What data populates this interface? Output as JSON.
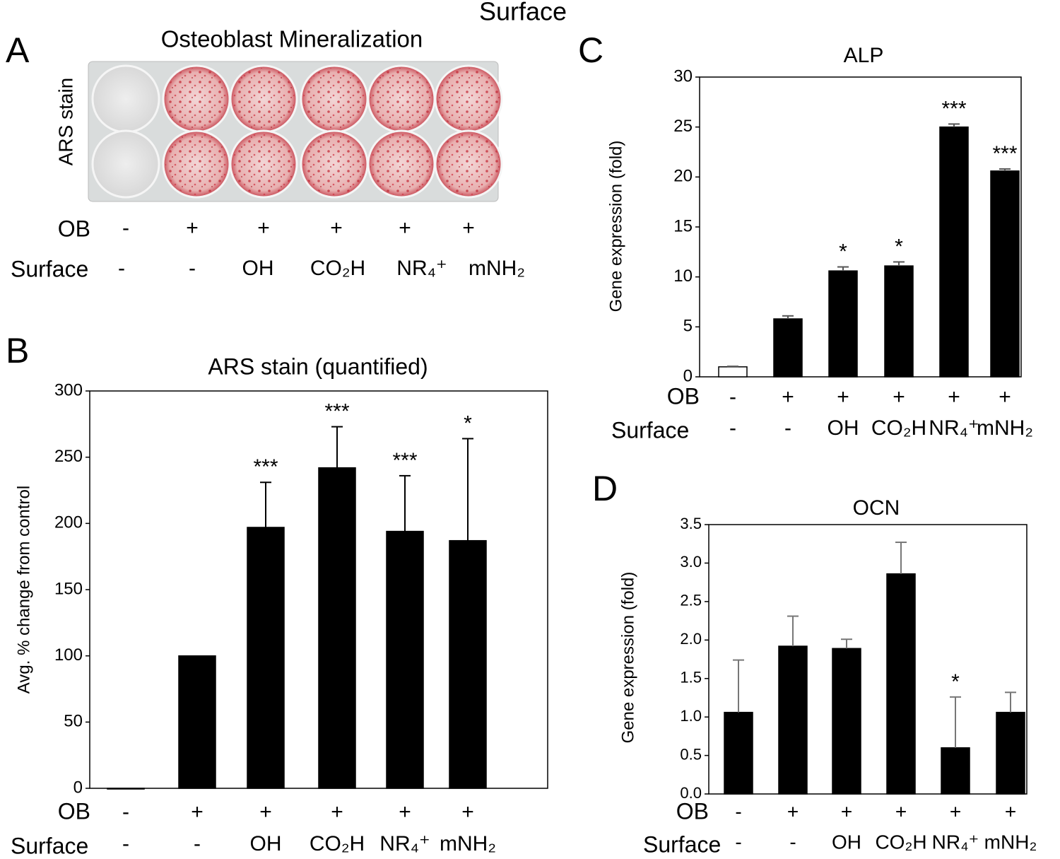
{
  "header": {
    "title": "Surface"
  },
  "panel_a": {
    "letter": "A",
    "title": "Osteoblast Mineralization",
    "ylabel": "ARS stain",
    "ob_label": "OB",
    "surface_label": "Surface",
    "ob": [
      "-",
      "+",
      "+",
      "+",
      "+",
      "+"
    ],
    "surface": [
      "-",
      "-",
      "OH",
      "CO₂H",
      "NR₄⁺",
      "mNH₂"
    ]
  },
  "chart_data": [
    {
      "type": "bar",
      "panel": "B",
      "title": "ARS stain (quantified)",
      "ylabel": "Avg. % change from control",
      "ob_label": "OB",
      "surface_label": "Surface",
      "ob": [
        "-",
        "+",
        "+",
        "+",
        "+",
        "+"
      ],
      "surface": [
        "-",
        "-",
        "OH",
        "CO₂H",
        "NR₄⁺",
        "mNH₂"
      ],
      "values": [
        0,
        100,
        197,
        242,
        194,
        187
      ],
      "errors": [
        null,
        null,
        34,
        31,
        42,
        77
      ],
      "significance": [
        null,
        null,
        "***",
        "***",
        "***",
        "*"
      ],
      "colors": [
        "#000000",
        "#000000",
        "#000000",
        "#000000",
        "#000000",
        "#000000"
      ],
      "ylim": [
        0,
        300
      ],
      "yticks": [
        0,
        50,
        100,
        150,
        200,
        250,
        300
      ]
    },
    {
      "type": "bar",
      "panel": "C",
      "title": "ALP",
      "ylabel": "Gene expression (fold)",
      "ob_label": "OB",
      "surface_label": "Surface",
      "ob": [
        "-",
        "+",
        "+",
        "+",
        "+",
        "+"
      ],
      "surface": [
        "-",
        "-",
        "OH",
        "CO₂H",
        "NR₄⁺",
        "mNH₂"
      ],
      "values": [
        1.0,
        5.8,
        10.6,
        11.1,
        25.0,
        20.6
      ],
      "errors": [
        0.05,
        0.3,
        0.4,
        0.4,
        0.3,
        0.2
      ],
      "significance": [
        null,
        null,
        "*",
        "*",
        "***",
        "***"
      ],
      "colors": [
        "#ffffff",
        "#000000",
        "#000000",
        "#000000",
        "#000000",
        "#000000"
      ],
      "ylim": [
        0,
        30
      ],
      "yticks": [
        0,
        5,
        10,
        15,
        20,
        25,
        30
      ]
    },
    {
      "type": "bar",
      "panel": "D",
      "title": "OCN",
      "ylabel": "Gene expression (fold)",
      "ob_label": "OB",
      "surface_label": "Surface",
      "ob": [
        "-",
        "+",
        "+",
        "+",
        "+",
        "+"
      ],
      "surface": [
        "-",
        "-",
        "OH",
        "CO₂H",
        "NR₄⁺",
        "mNH₂"
      ],
      "values": [
        1.06,
        1.92,
        1.89,
        2.86,
        0.6,
        1.06
      ],
      "errors": [
        0.68,
        0.39,
        0.12,
        0.41,
        0.66,
        0.26
      ],
      "significance": [
        null,
        null,
        null,
        null,
        "*",
        null
      ],
      "colors": [
        "#000000",
        "#000000",
        "#000000",
        "#000000",
        "#000000",
        "#000000"
      ],
      "ylim": [
        0,
        3.5
      ],
      "yticks": [
        {
          "value": 0,
          "label": "0.0"
        },
        0.5,
        {
          "value": 1,
          "label": "1.0"
        },
        1.5,
        {
          "value": 2,
          "label": "2.0"
        },
        2.5,
        {
          "value": 3,
          "label": "3.0"
        },
        3.5
      ]
    }
  ]
}
